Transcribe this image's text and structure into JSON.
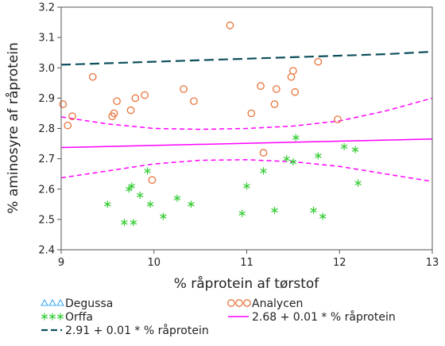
{
  "chart_data": {
    "type": "scatter",
    "xlabel": "% råprotein af tørstof",
    "ylabel": "% aminosyre af råprotein",
    "xlim": [
      9,
      13
    ],
    "ylim": [
      2.4,
      3.2
    ],
    "x_ticks": [
      "9",
      "10",
      "11",
      "12",
      "13"
    ],
    "y_ticks": [
      "2.4",
      "2.5",
      "2.6",
      "2.7",
      "2.8",
      "2.9",
      "3.0",
      "3.1",
      "3.2"
    ],
    "grid": false,
    "legend_position": "bottom",
    "series": [
      {
        "name": "Degussa",
        "marker": "triangle",
        "color": "#3fa9f5",
        "points": []
      },
      {
        "name": "Orffa",
        "marker": "asterisk",
        "color": "#33cc33",
        "points": [
          [
            9.5,
            2.55
          ],
          [
            9.68,
            2.49
          ],
          [
            9.73,
            2.6
          ],
          [
            9.76,
            2.61
          ],
          [
            9.78,
            2.49
          ],
          [
            9.85,
            2.58
          ],
          [
            9.93,
            2.66
          ],
          [
            9.96,
            2.55
          ],
          [
            10.1,
            2.51
          ],
          [
            10.25,
            2.57
          ],
          [
            10.4,
            2.55
          ],
          [
            10.95,
            2.52
          ],
          [
            11.0,
            2.61
          ],
          [
            11.18,
            2.66
          ],
          [
            11.3,
            2.53
          ],
          [
            11.43,
            2.7
          ],
          [
            11.5,
            2.69
          ],
          [
            11.53,
            2.77
          ],
          [
            11.72,
            2.53
          ],
          [
            11.77,
            2.71
          ],
          [
            11.82,
            2.51
          ],
          [
            12.05,
            2.74
          ],
          [
            12.17,
            2.73
          ],
          [
            12.2,
            2.62
          ]
        ]
      },
      {
        "name": "Analycen",
        "marker": "circle",
        "color": "#e8743b",
        "points": [
          [
            9.02,
            2.88
          ],
          [
            9.07,
            2.81
          ],
          [
            9.12,
            2.84
          ],
          [
            9.34,
            2.97
          ],
          [
            9.55,
            2.84
          ],
          [
            9.57,
            2.85
          ],
          [
            9.6,
            2.89
          ],
          [
            9.75,
            2.86
          ],
          [
            9.8,
            2.9
          ],
          [
            9.9,
            2.91
          ],
          [
            9.98,
            2.63
          ],
          [
            10.32,
            2.93
          ],
          [
            10.43,
            2.89
          ],
          [
            10.82,
            3.14
          ],
          [
            11.05,
            2.85
          ],
          [
            11.15,
            2.94
          ],
          [
            11.18,
            2.72
          ],
          [
            11.3,
            2.88
          ],
          [
            11.32,
            2.93
          ],
          [
            11.48,
            2.97
          ],
          [
            11.5,
            2.99
          ],
          [
            11.52,
            2.92
          ],
          [
            11.77,
            3.02
          ],
          [
            11.98,
            2.83
          ]
        ]
      }
    ],
    "lines": [
      {
        "name": "2.91 + 0.01 * % råprotein",
        "color": "#0d4f5c",
        "dash": "long-dash",
        "x": [
          9,
          9.5,
          10,
          10.5,
          11,
          11.5,
          12,
          12.5,
          13
        ],
        "y": [
          3.01,
          3.015,
          3.02,
          3.025,
          3.03,
          3.035,
          3.04,
          3.045,
          3.053
        ]
      },
      {
        "name": "2.68 + 0.01 * % råprotein",
        "color": "#ff00ff",
        "dash": "solid",
        "x": [
          9,
          13
        ],
        "y": [
          2.737,
          2.765
        ]
      },
      {
        "name": "",
        "color": "#ff00ff",
        "dash": "short-dash",
        "x": [
          9,
          9.5,
          10,
          10.5,
          11,
          11.5,
          12,
          12.5,
          13
        ],
        "y": [
          2.838,
          2.815,
          2.8,
          2.797,
          2.8,
          2.808,
          2.825,
          2.858,
          2.9
        ]
      },
      {
        "name": "",
        "color": "#ff00ff",
        "dash": "short-dash",
        "x": [
          9,
          9.5,
          10,
          10.5,
          11,
          11.5,
          12,
          12.5,
          13
        ],
        "y": [
          2.637,
          2.66,
          2.683,
          2.695,
          2.697,
          2.69,
          2.675,
          2.65,
          2.625
        ]
      }
    ]
  }
}
